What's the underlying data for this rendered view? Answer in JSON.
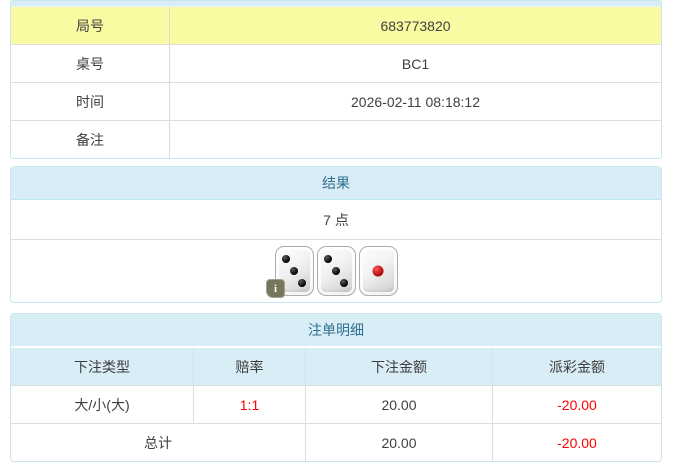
{
  "colors": {
    "accent_bg": "#d9edf7",
    "accent_border": "#bce8f1",
    "accent_text": "#31708f",
    "highlight_row_bg": "#fafaa2",
    "negative_text": "#ff0000",
    "divider": "#dddddd",
    "body_text": "#404040"
  },
  "game_info": {
    "rows": [
      {
        "label": "局号",
        "value": "683773820",
        "highlight": true
      },
      {
        "label": "桌号",
        "value": "BC1",
        "highlight": false
      },
      {
        "label": "时间",
        "value": "2026-02-11 08:18:12",
        "highlight": false
      },
      {
        "label": "备注",
        "value": "",
        "highlight": false
      }
    ]
  },
  "result_panel": {
    "title": "结果",
    "points": "7 点",
    "dice": [
      {
        "value": 3,
        "color": "black"
      },
      {
        "value": 3,
        "color": "black"
      },
      {
        "value": 1,
        "color": "red"
      }
    ],
    "info_icon_glyph": "i"
  },
  "bet_panel": {
    "title": "注单明细",
    "columns": [
      "下注类型",
      "赔率",
      "下注金额",
      "派彩金额"
    ],
    "rows": [
      {
        "type": "大/小(大)",
        "odds": "1:1",
        "bet": "20.00",
        "payout": "-20.00"
      }
    ],
    "total": {
      "label": "总计",
      "bet": "20.00",
      "payout": "-20.00"
    }
  }
}
